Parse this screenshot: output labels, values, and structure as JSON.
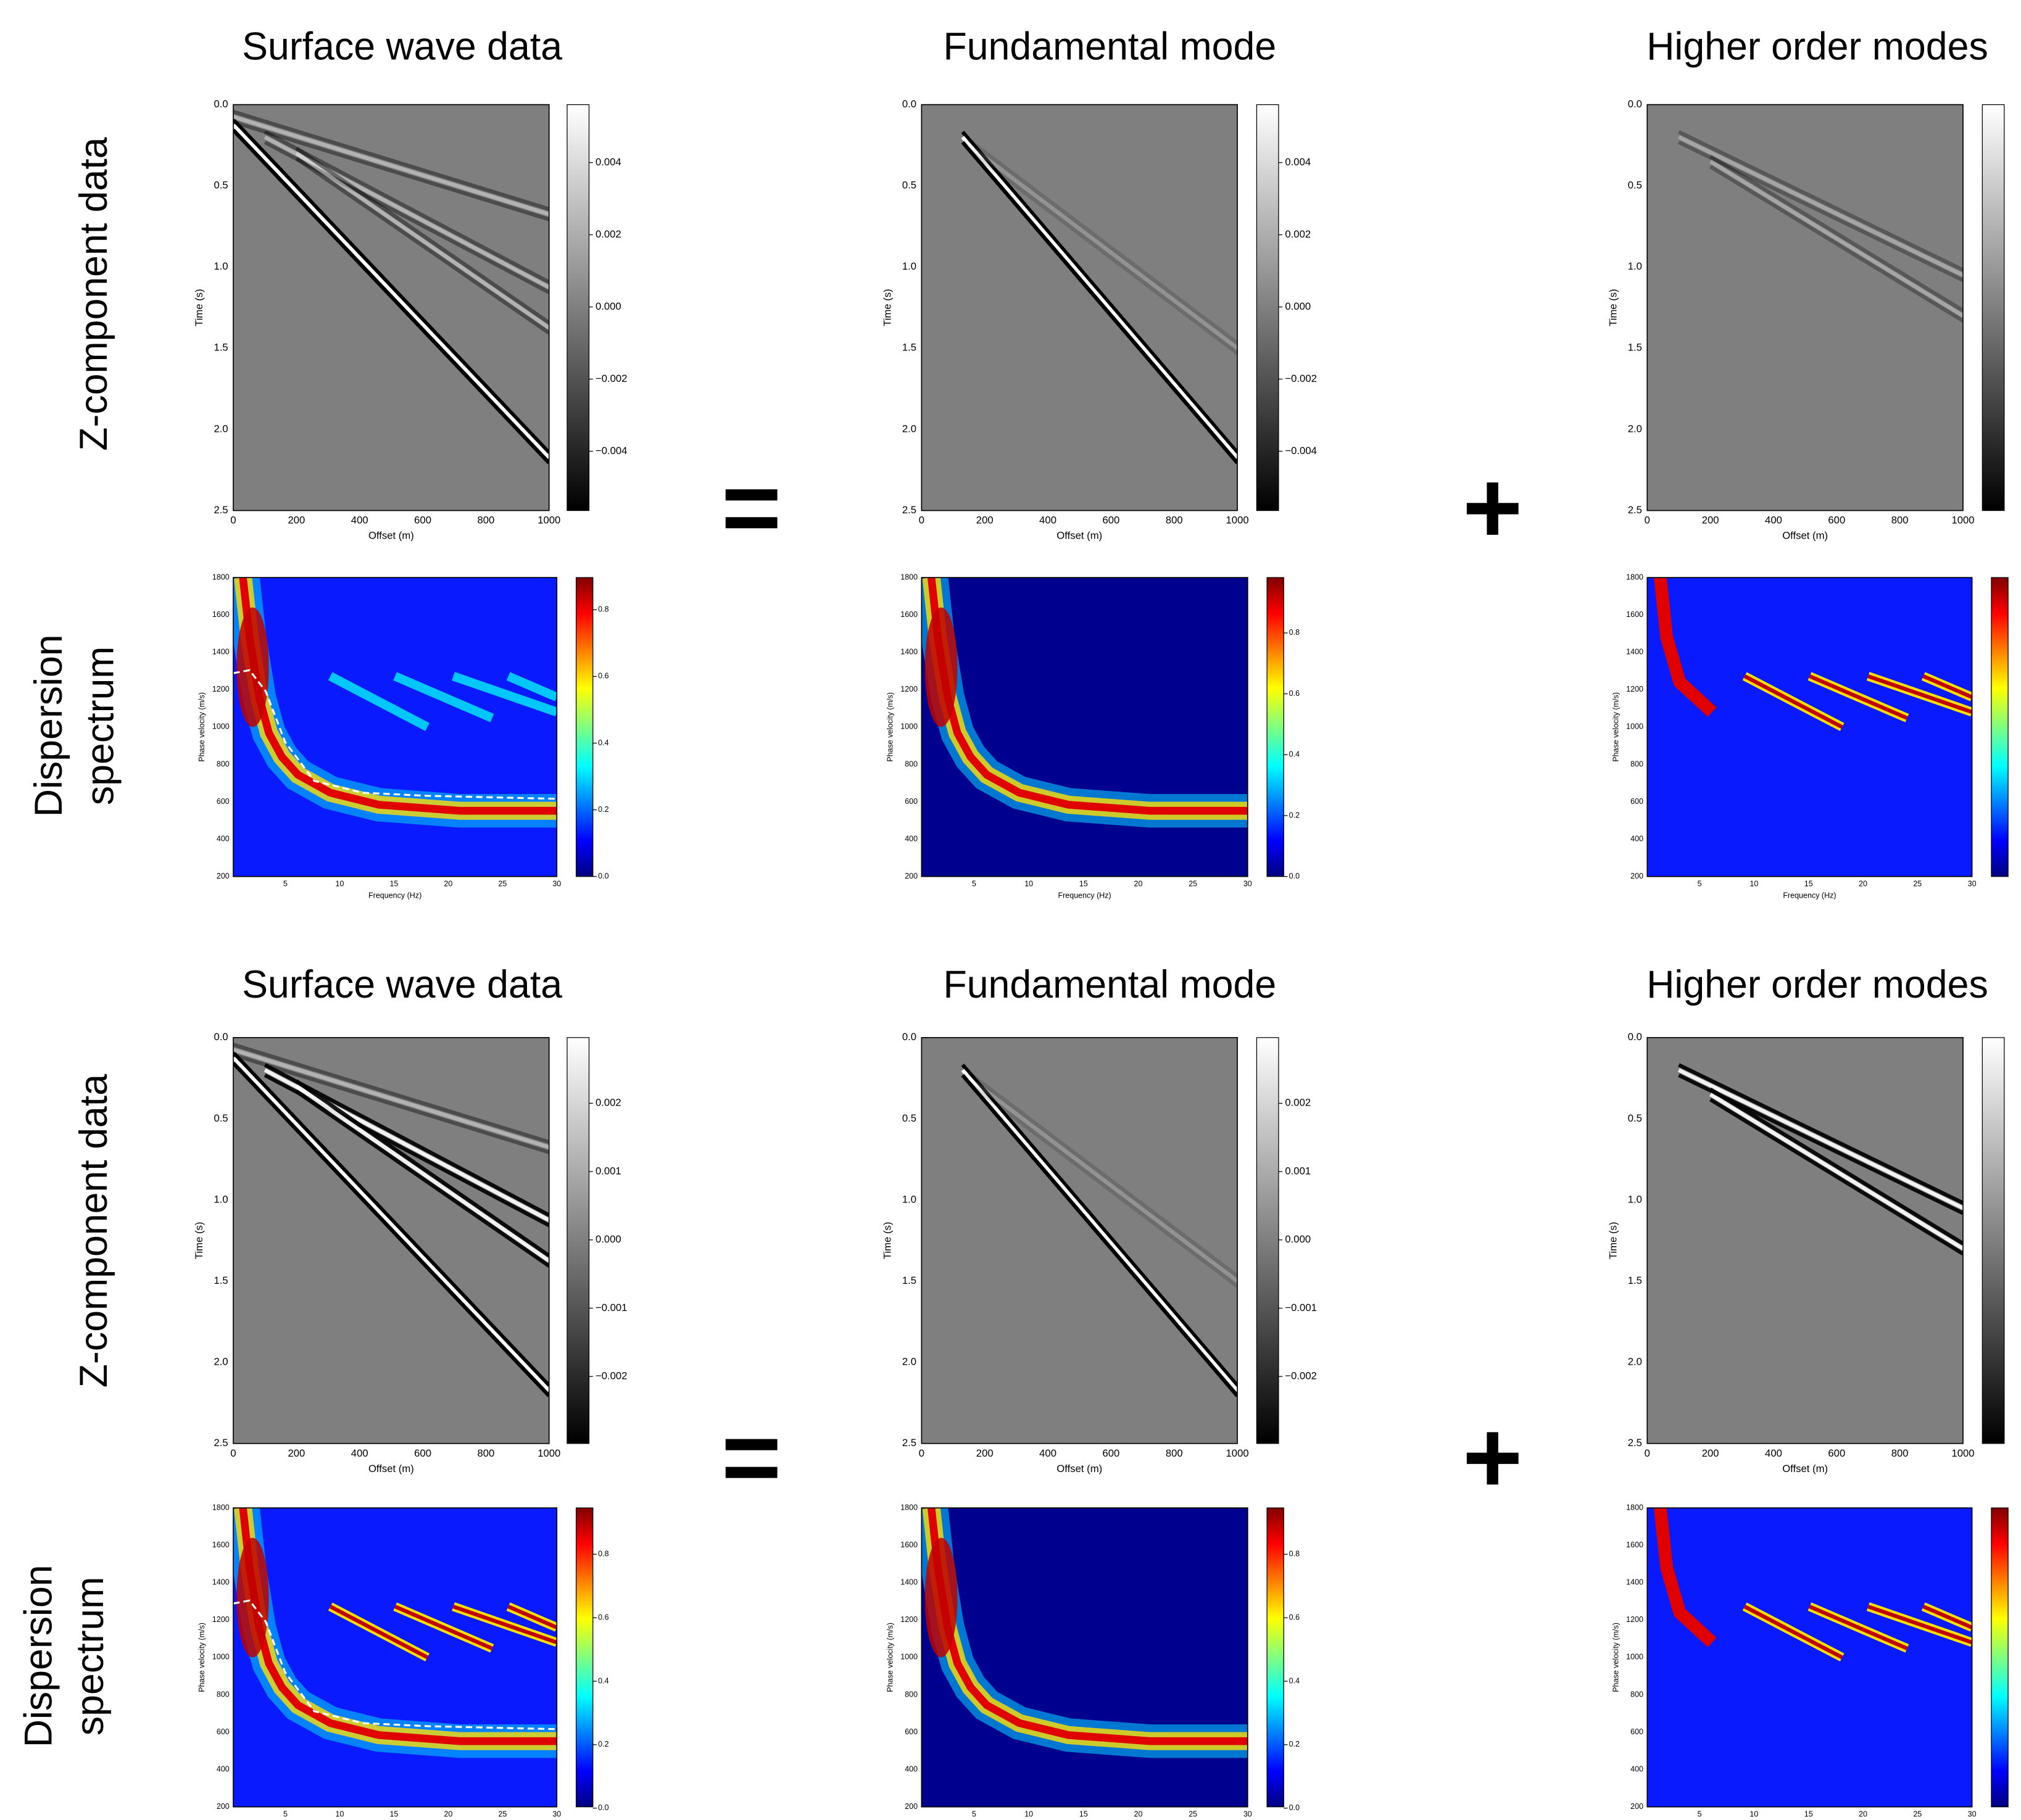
{
  "blocks": [
    {
      "column_titles": [
        "Surface wave data",
        "Fundamental mode",
        "Higher order modes"
      ],
      "row_labels": {
        "z": "Z-component data",
        "dispersion": [
          "Dispersion",
          "spectrum"
        ]
      },
      "operators": [
        "=",
        "+"
      ],
      "z_colorbar_ticks": [
        "0.004",
        "0.002",
        "0.000",
        "−0.002",
        "−0.004"
      ],
      "dispersion_colorbar_ticks": [
        "0.0",
        "0.2",
        "0.4",
        "0.6",
        "0.8"
      ]
    },
    {
      "column_titles": [
        "Surface wave data",
        "Fundamental mode",
        "Higher order modes"
      ],
      "row_labels": {
        "z": "Z-component data",
        "dispersion": [
          "Dispersion",
          "spectrum"
        ]
      },
      "operators": [
        "=",
        "+"
      ],
      "z_colorbar_ticks": [
        "0.002",
        "0.001",
        "0.000",
        "−0.001",
        "−0.002"
      ],
      "dispersion_colorbar_ticks": [
        "0.0",
        "0.2",
        "0.4",
        "0.6",
        "0.8"
      ]
    }
  ],
  "axes": {
    "time": {
      "label": "Time (s)",
      "ticks": [
        "0.0",
        "0.5",
        "1.0",
        "1.5",
        "2.0",
        "2.5"
      ]
    },
    "offset": {
      "label": "Offset (m)",
      "ticks": [
        "0",
        "200",
        "400",
        "600",
        "800",
        "1000"
      ]
    },
    "velocity": {
      "label": "Phase velocity (m/s)",
      "ticks": [
        "200",
        "400",
        "600",
        "800",
        "1000",
        "1200",
        "1400",
        "1600",
        "1800"
      ]
    },
    "frequency": {
      "label": "Frequency (Hz)",
      "ticks": [
        "5",
        "10",
        "15",
        "20",
        "25",
        "30"
      ]
    }
  }
}
